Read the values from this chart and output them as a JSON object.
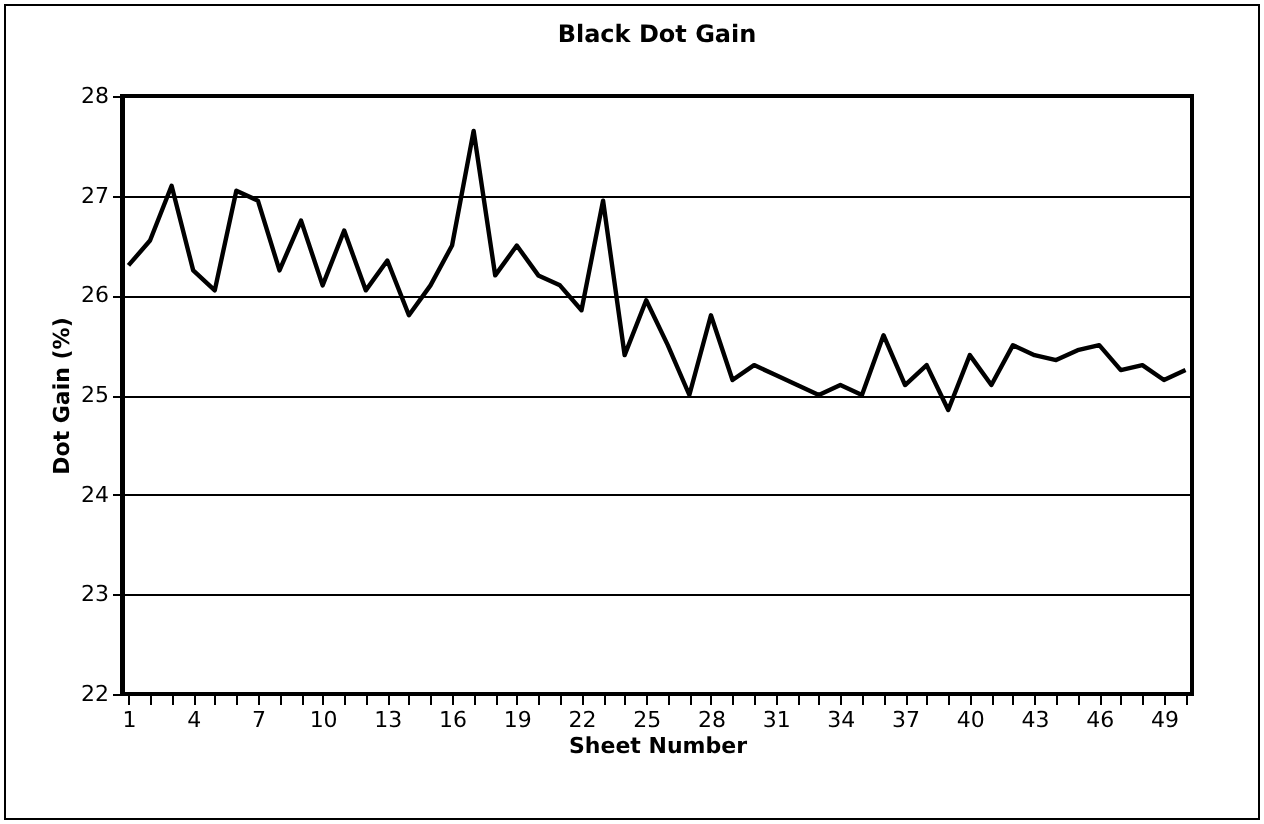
{
  "chart_data": {
    "type": "line",
    "title": "Black Dot Gain",
    "xlabel": "Sheet Number",
    "ylabel": "Dot Gain (%)",
    "categories": [
      "1",
      null,
      null,
      "4",
      null,
      null,
      "7",
      null,
      null,
      "10",
      null,
      null,
      "13",
      null,
      null,
      "16",
      null,
      null,
      "19",
      null,
      null,
      "22",
      null,
      null,
      "25",
      null,
      null,
      "28",
      null,
      null,
      "31",
      null,
      null,
      "34",
      null,
      null,
      "37",
      null,
      null,
      "40",
      null,
      null,
      "43",
      null,
      null,
      "46",
      null,
      null,
      "49",
      null
    ],
    "series": [
      {
        "color": "#000000",
        "values": [
          26.3,
          26.55,
          27.1,
          26.25,
          26.05,
          27.05,
          26.95,
          26.25,
          26.75,
          26.1,
          26.65,
          26.05,
          26.35,
          25.8,
          26.1,
          26.5,
          27.65,
          26.2,
          26.5,
          26.2,
          26.1,
          25.85,
          26.95,
          25.4,
          25.95,
          25.5,
          25.0,
          25.8,
          25.15,
          25.3,
          25.2,
          25.1,
          25.0,
          25.1,
          25.0,
          25.6,
          25.1,
          25.3,
          24.85,
          25.4,
          25.1,
          25.5,
          25.4,
          25.35,
          25.45,
          25.5,
          25.25,
          25.3,
          25.15,
          25.25
        ]
      }
    ],
    "ylim": [
      22,
      28
    ],
    "yticks": [
      22,
      23,
      24,
      25,
      26,
      27,
      28
    ],
    "grid": "y",
    "marker": "none",
    "line_style": "solid"
  }
}
